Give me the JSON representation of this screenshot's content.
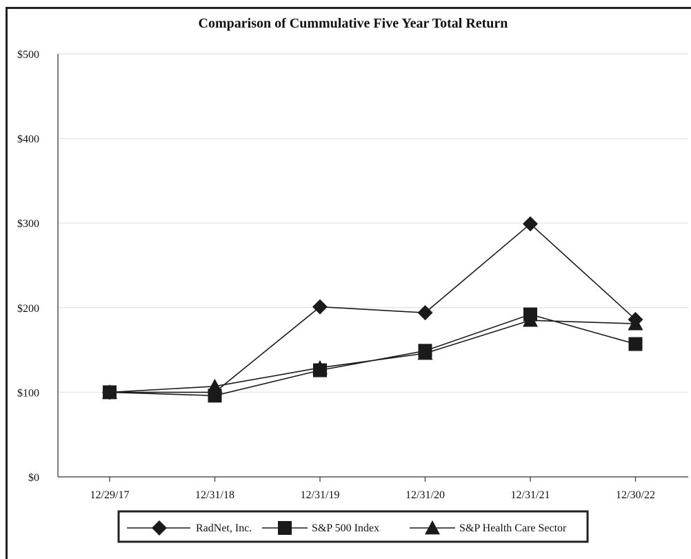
{
  "chart_data": {
    "type": "line",
    "title": "Comparison of Cummulative Five Year Total Return",
    "categories": [
      "12/29/17",
      "12/31/18",
      "12/31/19",
      "12/31/20",
      "12/31/21",
      "12/30/22"
    ],
    "ylim": [
      0,
      500
    ],
    "yticks": [
      "$0",
      "$100",
      "$200",
      "$300",
      "$400",
      "$500"
    ],
    "ytick_values": [
      0,
      100,
      200,
      300,
      400,
      500
    ],
    "grid": true,
    "legend_position": "bottom",
    "series": [
      {
        "name": "RadNet, Inc.",
        "marker": "diamond",
        "values": [
          100,
          100,
          201,
          194,
          299,
          186
        ]
      },
      {
        "name": "S&P 500 Index",
        "marker": "square",
        "values": [
          100,
          96,
          126,
          149,
          192,
          157
        ]
      },
      {
        "name": "S&P Health Care Sector",
        "marker": "triangle",
        "values": [
          100,
          107,
          129,
          146,
          185,
          181
        ]
      }
    ],
    "colors": {
      "line": "#1a1a1a",
      "grid": "#e6e6e6",
      "axis": "#555555"
    }
  }
}
